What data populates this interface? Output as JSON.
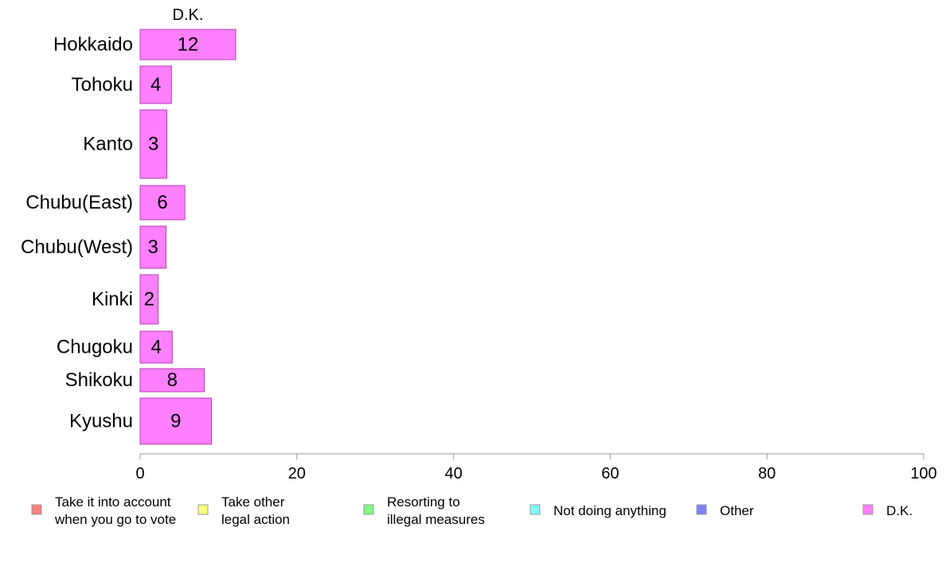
{
  "chart_data": {
    "type": "bar",
    "orientation": "horizontal",
    "stacked": true,
    "series_label": "D.K.",
    "categories": [
      "Hokkaido",
      "Tohoku",
      "Kanto",
      "Chubu(East)",
      "Chubu(West)",
      "Kinki",
      "Chugoku",
      "Shikoku",
      "Kyushu"
    ],
    "series": [
      {
        "name": "Take it into account when you go to vote",
        "color": "#ff8080",
        "values": [
          0,
          0,
          0,
          0,
          0,
          0,
          0,
          0,
          0
        ]
      },
      {
        "name": "Take other legal action",
        "color": "#ffff80",
        "values": [
          0,
          0,
          0,
          0,
          0,
          0,
          0,
          0,
          0
        ]
      },
      {
        "name": "Resorting to illegal measures",
        "color": "#80ff80",
        "values": [
          0,
          0,
          0,
          0,
          0,
          0,
          0,
          0,
          0
        ]
      },
      {
        "name": "Not doing anything",
        "color": "#80ffff",
        "values": [
          0,
          0,
          0,
          0,
          0,
          0,
          0,
          0,
          0
        ]
      },
      {
        "name": "Other",
        "color": "#8080ff",
        "values": [
          0,
          0,
          0,
          0,
          0,
          0,
          0,
          0,
          0
        ]
      },
      {
        "name": "D.K.",
        "color": "#ff80ff",
        "values": [
          12.2,
          4,
          3.4,
          5.7,
          3.3,
          2.3,
          4.1,
          8.2,
          9.1
        ],
        "labels": [
          "12",
          "4",
          "3",
          "6",
          "3",
          "2",
          "4",
          "8",
          "9"
        ]
      }
    ],
    "xlim": [
      0,
      100
    ],
    "xticks": [
      "0",
      "20",
      "40",
      "60",
      "80",
      "100"
    ],
    "grid": false,
    "legend_position": "bottom"
  }
}
